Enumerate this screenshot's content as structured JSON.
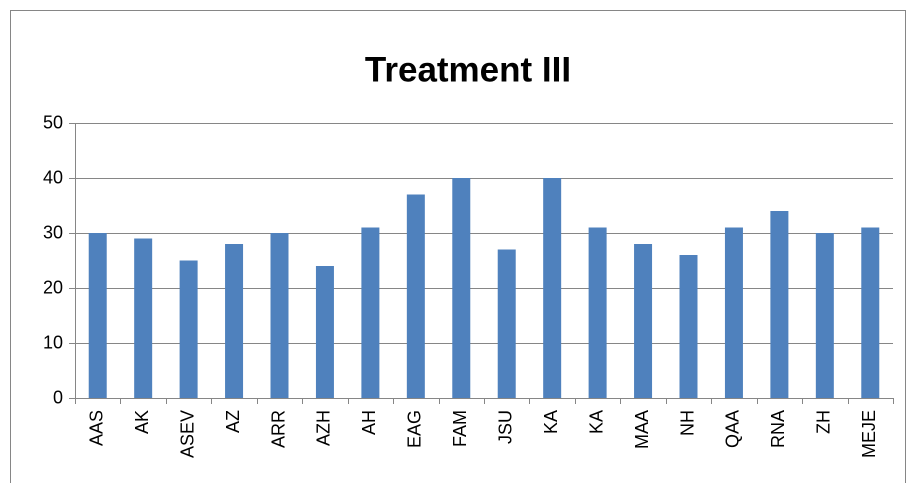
{
  "chart_data": {
    "type": "bar",
    "title": "Treatment III",
    "categories": [
      "AAS",
      "AK",
      "ASEV",
      "AZ",
      "ARR",
      "AZH",
      "AH",
      "EAG",
      "FAM",
      "JSU",
      "KA",
      "KA",
      "MAA",
      "NH",
      "QAA",
      "RNA",
      "ZH",
      "MEJE"
    ],
    "values": [
      30,
      29,
      25,
      28,
      30,
      24,
      31,
      37,
      40,
      27,
      40,
      31,
      28,
      26,
      31,
      34,
      30,
      31
    ],
    "color": "#4f81bd",
    "ylim": [
      0,
      50
    ],
    "yticks": [
      0,
      10,
      20,
      30,
      40,
      50
    ],
    "grid": true
  }
}
